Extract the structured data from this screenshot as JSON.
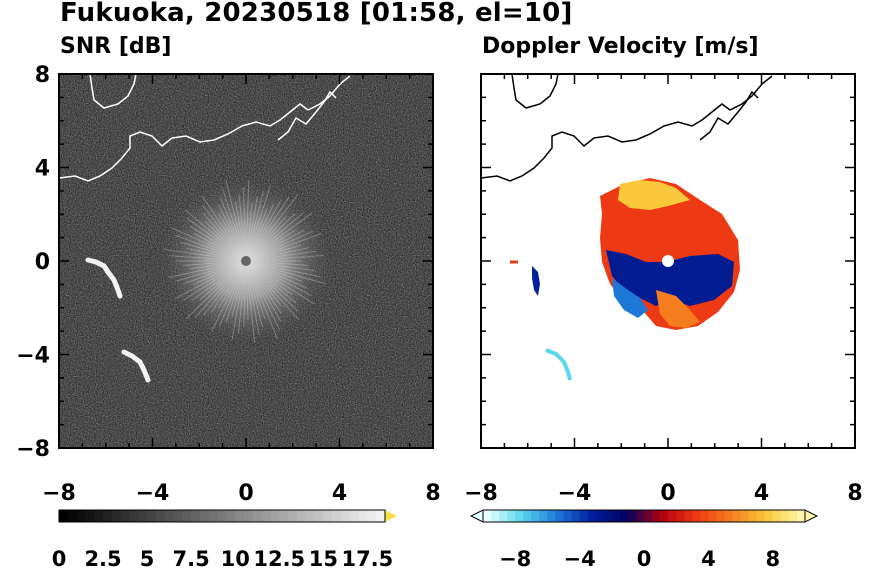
{
  "title": "Fukuoka, 20230518 [01:58, el=10]",
  "chart_data": [
    {
      "type": "heatmap",
      "title": "SNR [dB]",
      "x_ticks": [
        "−8",
        "−4",
        "0",
        "4",
        "8"
      ],
      "y_ticks": [
        "8",
        "4",
        "0",
        "−4",
        "−8"
      ],
      "xlim": [
        -8,
        8
      ],
      "ylim": [
        -8,
        8
      ],
      "radar_location": [
        0,
        0
      ],
      "colorbar": {
        "tick_labels": [
          "0",
          "2.5",
          "5",
          "7.5",
          "10",
          "12.5",
          "15",
          "17.5"
        ],
        "range": [
          0,
          18.5
        ],
        "extend": "max",
        "colors": [
          "#000000",
          "#ffffff"
        ],
        "end_color": "#f5e14b"
      },
      "echoes": [
        {
          "x": [
            -6.8,
            -5.7
          ],
          "y": [
            0.0,
            -1.4
          ]
        },
        {
          "x": [
            -5.2,
            -4.0
          ],
          "y": [
            -3.8,
            -5.1
          ]
        }
      ]
    },
    {
      "type": "heatmap",
      "title": "Doppler Velocity [m/s]",
      "x_ticks": [
        "−8",
        "−4",
        "0",
        "4",
        "8"
      ],
      "xlim": [
        -8,
        8
      ],
      "ylim": [
        -8,
        8
      ],
      "radar_location": [
        0,
        0
      ],
      "colorbar": {
        "tick_labels": [
          "−8",
          "−4",
          "0",
          "4",
          "8"
        ],
        "range": [
          -10,
          10
        ],
        "extend": "both",
        "colors": [
          "#e8ffff",
          "#5ad7ee",
          "#1e78d8",
          "#0020a0",
          "#000060",
          "#b00010",
          "#ee3a14",
          "#f57d1e",
          "#f8c83a",
          "#fff4a8"
        ]
      }
    }
  ]
}
